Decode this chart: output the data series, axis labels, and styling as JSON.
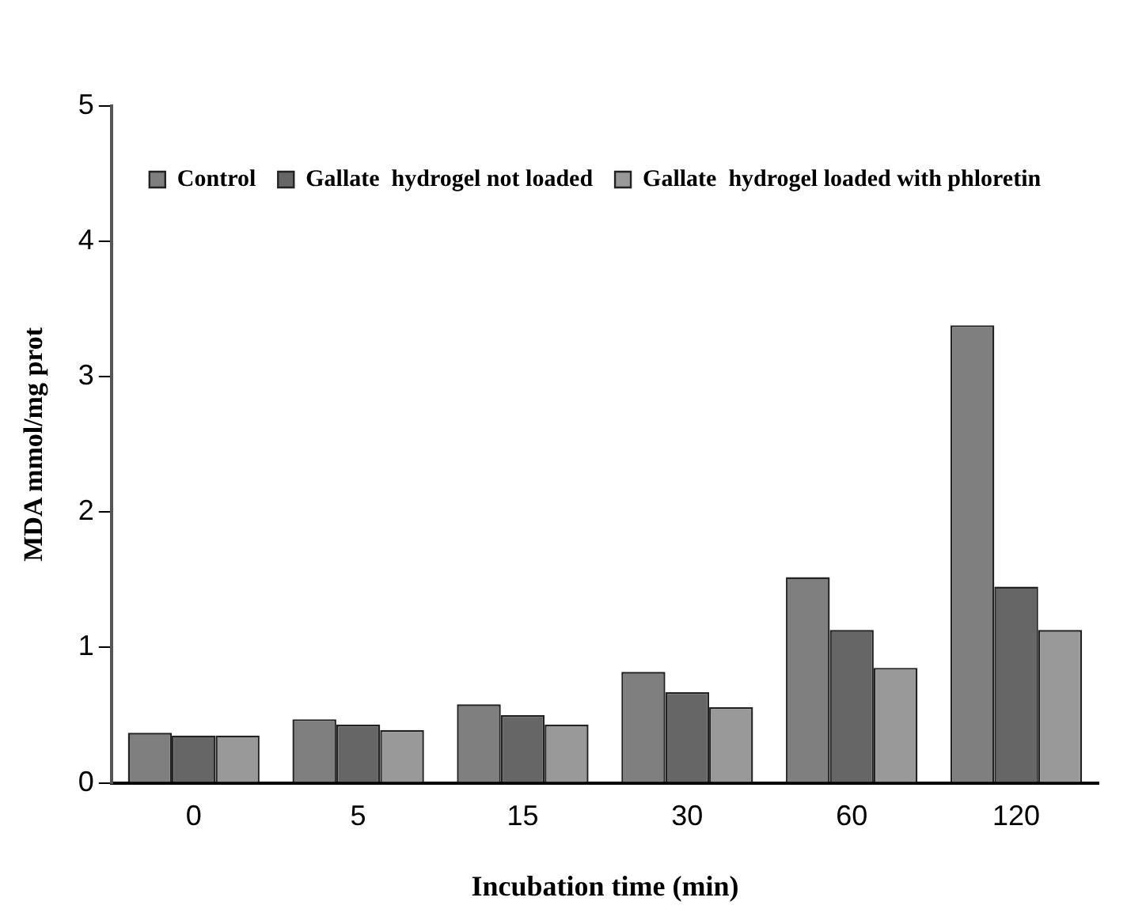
{
  "chart_data": {
    "type": "bar",
    "xlabel": "Incubation time (min)",
    "ylabel": "MDA mmol/mg prot",
    "categories": [
      "0",
      "5",
      "15",
      "30",
      "60",
      "120"
    ],
    "series": [
      {
        "name": "Control",
        "color": "#7f7f7f",
        "values": [
          0.37,
          0.47,
          0.58,
          0.82,
          1.52,
          3.38
        ]
      },
      {
        "name": "Gallate  hydrogel not loaded",
        "color": "#666666",
        "values": [
          0.35,
          0.43,
          0.5,
          0.67,
          1.13,
          1.45
        ]
      },
      {
        "name": "Gallate  hydrogel loaded with phloretin",
        "color": "#999999",
        "values": [
          0.35,
          0.39,
          0.43,
          0.56,
          0.85,
          1.13
        ]
      }
    ],
    "ylim": [
      0,
      5
    ],
    "yticks": [
      0,
      1,
      2,
      3,
      4,
      5
    ],
    "grid": false,
    "legend": "top left"
  }
}
